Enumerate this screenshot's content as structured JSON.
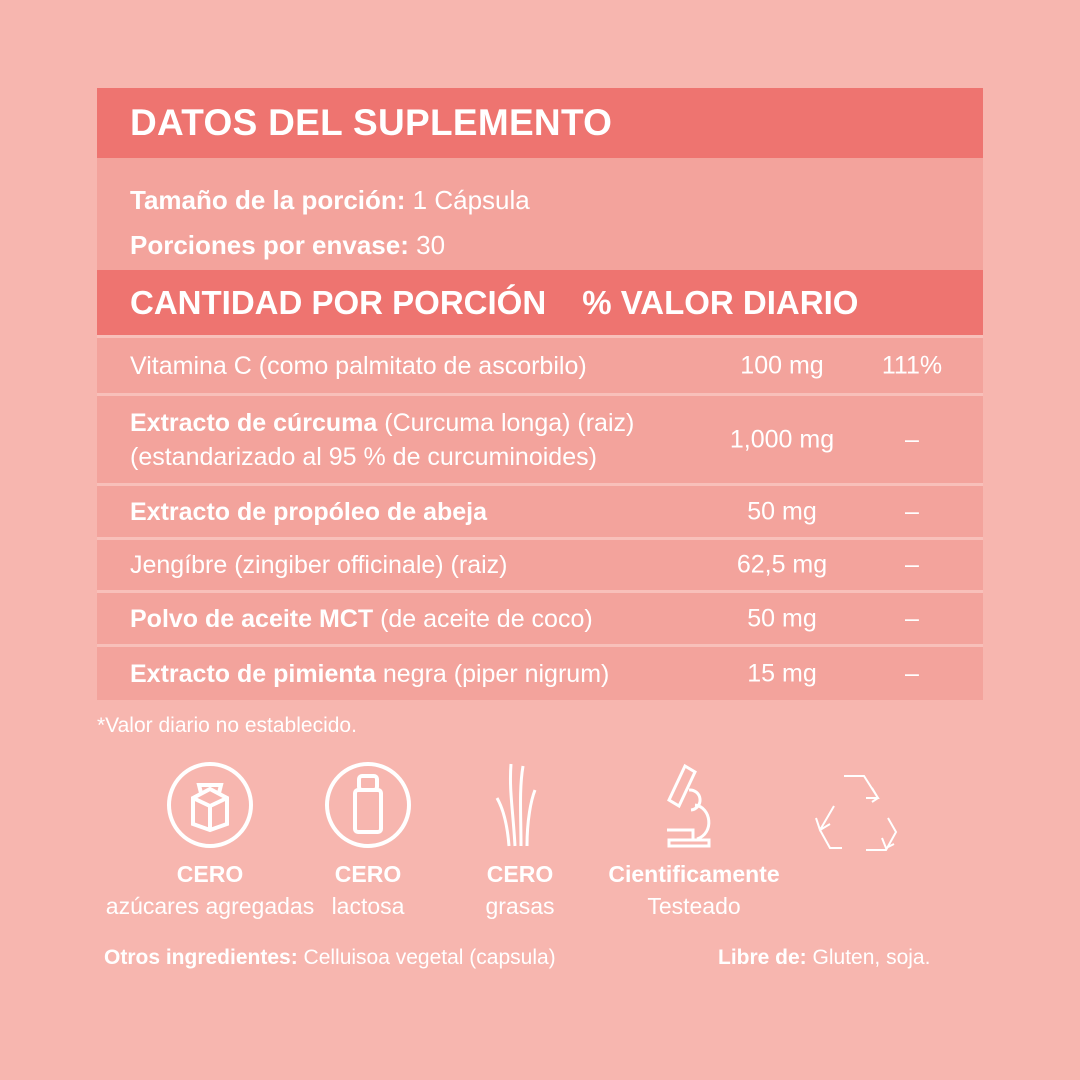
{
  "title": "DATOS DEL SUPLEMENTO",
  "serving": {
    "size_label": "Tamaño de la porción:",
    "size_value": " 1 Cápsula",
    "servings_label": "Porciones por envase:",
    "servings_value": " 30"
  },
  "columns": {
    "amount": "CANTIDAD POR PORCIÓN",
    "dv": "% VALOR DIARIO"
  },
  "rows": [
    {
      "bold": "",
      "regular": "Vitamina C (como palmitato de ascorbilo)",
      "line2": "",
      "amount": "100 mg",
      "dv": "111%"
    },
    {
      "bold": "Extracto de cúrcuma",
      "regular": " (Curcuma longa) (raiz)",
      "line2": "(estandarizado al 95 % de curcuminoides)",
      "amount": "1,000 mg",
      "dv": "–"
    },
    {
      "bold": "Extracto de propóleo de abeja",
      "regular": "",
      "line2": "",
      "amount": "50 mg",
      "dv": "–"
    },
    {
      "bold": "",
      "regular": "Jengíbre (zingiber officinale) (raiz)",
      "line2": "",
      "amount": "62,5 mg",
      "dv": "–"
    },
    {
      "bold": "Polvo de aceite MCT",
      "regular": " (de aceite de coco)",
      "line2": "",
      "amount": "50 mg",
      "dv": "–"
    },
    {
      "bold": "Extracto de pimienta",
      "regular": " negra (piper nigrum)",
      "line2": "",
      "amount": "15 mg",
      "dv": "–"
    }
  ],
  "note": "*Valor diario no establecido.",
  "badges": [
    {
      "icon": "sugar-cube-icon",
      "line1": "CERO",
      "line2": "azúcares agregadas"
    },
    {
      "icon": "milk-bottle-icon",
      "line1": "CERO",
      "line2": "lactosa"
    },
    {
      "icon": "grass-icon",
      "line1": "CERO",
      "line2": "grasas"
    },
    {
      "icon": "microscope-icon",
      "line1": "Cientificamente",
      "line2": "Testeado"
    },
    {
      "icon": "recycle-icon"
    }
  ],
  "footer": {
    "other_label": "Otros ingredientes:",
    "other_value": " Celluisoa vegetal (capsula)",
    "free_label": "Libre de:",
    "free_value": " Gluten, soja."
  },
  "colors": {
    "background": "#f7b6af",
    "panel": "#f3a39c",
    "band": "#ee7470"
  }
}
